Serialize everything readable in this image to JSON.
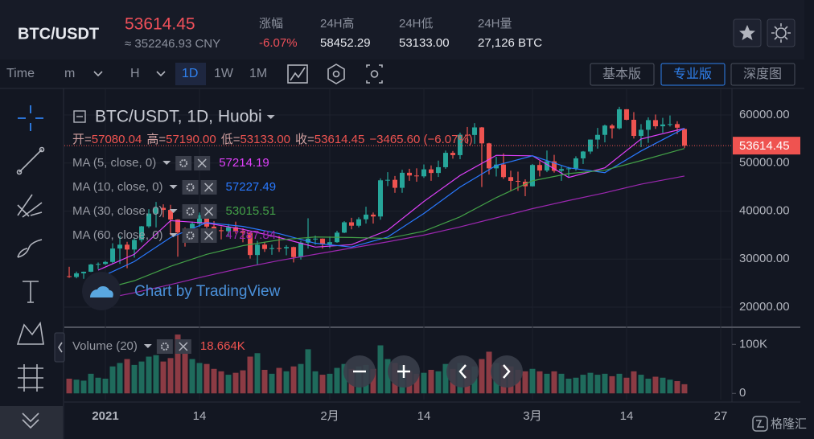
{
  "header": {
    "pair": "BTC/USDT",
    "price": "53614.45",
    "price_cny": "≈ 352246.93 CNY",
    "stats": [
      {
        "label": "涨幅",
        "value": "-6.07%"
      },
      {
        "label": "24H高",
        "value": "58452.29"
      },
      {
        "label": "24H低",
        "value": "53133.00"
      },
      {
        "label": "24H量",
        "value": "27,126 BTC"
      }
    ]
  },
  "toolbar": {
    "intervals": [
      "Time",
      "m",
      "H",
      "1D",
      "1W",
      "1M"
    ],
    "versions": [
      "基本版",
      "专业版",
      "深度图"
    ]
  },
  "chart_data": {
    "type": "candlestick",
    "title": "BTC/USDT, 1D, Huobi",
    "ohlc_legend": [
      "开=",
      "57080.04",
      "高=",
      "57190.00",
      "低=",
      "53133.00",
      "收=",
      "53614.45",
      "−3465.60 (−6.07%)"
    ],
    "watermark": "Chart by TradingView",
    "logo": "格隆汇",
    "up_color": "#26a69a",
    "down_color": "#ef5350",
    "grid": true,
    "x": [
      -5,
      -4,
      -3,
      -2,
      -1,
      0,
      1,
      2,
      3,
      4,
      5,
      6,
      7,
      8,
      9,
      10,
      11,
      12,
      13,
      14,
      15,
      16,
      17,
      18,
      19,
      20,
      21,
      22,
      23,
      24,
      25,
      26,
      27,
      28,
      29,
      30,
      31,
      32,
      33,
      34,
      35,
      36,
      37,
      38,
      39,
      40,
      41,
      42,
      43,
      44,
      45,
      46,
      47,
      48,
      49,
      50,
      51,
      52,
      53,
      54,
      55,
      56,
      57,
      58,
      59,
      60,
      61,
      62,
      63,
      64,
      65,
      66,
      67,
      68,
      69,
      70,
      71,
      72,
      73,
      74,
      75,
      76,
      77,
      78,
      79,
      80
    ],
    "xlim": [
      -5.67,
      86.56
    ],
    "xticks": [
      {
        "value": 0,
        "label": "2021"
      },
      {
        "value": 13,
        "label": "14"
      },
      {
        "value": 31,
        "label": "2月"
      },
      {
        "value": 44,
        "label": "14"
      },
      {
        "value": 59,
        "label": "3月"
      },
      {
        "value": 72,
        "label": "14"
      },
      {
        "value": 85,
        "label": "27"
      }
    ],
    "ylim": [
      16151,
      64686
    ],
    "yticks": [
      {
        "value": 20000,
        "label": "20000.00"
      },
      {
        "value": 30000,
        "label": "30000.00"
      },
      {
        "value": 40000,
        "label": "40000.00"
      },
      {
        "value": 50000,
        "label": "50000.00"
      },
      {
        "value": 60000,
        "label": "60000.00"
      }
    ],
    "open": [
      26440,
      26280,
      27040,
      27370,
      28880,
      28990,
      29410,
      32200,
      33000,
      31990,
      33990,
      36820,
      39470,
      40670,
      40240,
      38240,
      35540,
      34040,
      37370,
      39160,
      36760,
      36010,
      35820,
      36630,
      35890,
      35470,
      30850,
      33010,
      32100,
      32290,
      32250,
      32510,
      30420,
      33420,
      34260,
      34260,
      33110,
      33520,
      35510,
      37660,
      36950,
      38290,
      39260,
      38870,
      46400,
      46500,
      44840,
      47970,
      47400,
      47230,
      48680,
      47930,
      49130,
      52120,
      51640,
      55890,
      55840,
      57410,
      54090,
      48890,
      49680,
      47070,
      46280,
      46110,
      45160,
      49590,
      48440,
      50350,
      48370,
      48750,
      48880,
      50970,
      52390,
      54880,
      55860,
      57800,
      57220,
      61190,
      59000,
      55640,
      56920,
      58930,
      57650,
      58030,
      58100,
      57080.04
    ],
    "high": [
      28400,
      27400,
      27400,
      28990,
      29300,
      29600,
      33300,
      34800,
      33600,
      34500,
      36900,
      40400,
      41900,
      41400,
      41300,
      38300,
      36600,
      37800,
      39700,
      39700,
      37900,
      36800,
      37300,
      37800,
      36400,
      35600,
      33800,
      33500,
      33000,
      34800,
      32900,
      32600,
      33800,
      38500,
      34900,
      34300,
      34700,
      35900,
      37900,
      38600,
      38700,
      40900,
      39700,
      46800,
      48100,
      47300,
      48600,
      48800,
      48900,
      49700,
      49500,
      50500,
      52600,
      52500,
      56300,
      57500,
      58300,
      57500,
      54200,
      51300,
      52000,
      48400,
      48200,
      46600,
      49800,
      50400,
      52600,
      51700,
      49400,
      49200,
      51400,
      52500,
      54900,
      57300,
      58000,
      58100,
      61700,
      61200,
      60600,
      58100,
      59500,
      60100,
      59400,
      59900,
      58700,
      57190
    ],
    "low": [
      26100,
      26000,
      25900,
      27300,
      27900,
      28800,
      29100,
      29000,
      28100,
      30300,
      33500,
      36500,
      36600,
      38700,
      35000,
      30500,
      32600,
      33600,
      36700,
      34500,
      35400,
      34100,
      34800,
      35300,
      33500,
      30100,
      28900,
      31500,
      30900,
      31500,
      30800,
      29300,
      29900,
      32200,
      33000,
      32200,
      32300,
      33400,
      35400,
      36200,
      36600,
      37400,
      37400,
      38200,
      45200,
      43800,
      43800,
      46300,
      46100,
      46900,
      46300,
      47100,
      48800,
      50900,
      50800,
      54000,
      54000,
      45000,
      47600,
      47200,
      46700,
      44200,
      44200,
      43100,
      45100,
      47200,
      48100,
      48000,
      46300,
      47100,
      48400,
      49800,
      51900,
      53000,
      54300,
      55100,
      57000,
      58900,
      55100,
      53300,
      54200,
      57100,
      56300,
      57600,
      56000,
      53133
    ],
    "close": [
      26280,
      27040,
      27370,
      28880,
      28990,
      29410,
      32200,
      33000,
      31990,
      33990,
      36820,
      39470,
      40670,
      40240,
      38240,
      35540,
      34040,
      37370,
      39160,
      36760,
      36010,
      35820,
      36630,
      35890,
      35470,
      30850,
      33010,
      32100,
      32290,
      32250,
      32510,
      30420,
      33420,
      34260,
      34260,
      33110,
      33520,
      35510,
      37660,
      36950,
      38290,
      39260,
      38870,
      46400,
      46500,
      44840,
      47970,
      47400,
      47230,
      48680,
      47930,
      49130,
      52120,
      51640,
      55890,
      55840,
      57410,
      54090,
      48890,
      49680,
      47070,
      46280,
      46110,
      45160,
      49590,
      48440,
      50350,
      48370,
      48750,
      48880,
      50970,
      52390,
      54880,
      55860,
      57800,
      57220,
      61190,
      59000,
      55640,
      56920,
      58930,
      57650,
      58030,
      58100,
      57350,
      53614.45
    ],
    "indicators": [
      {
        "name": "MA (5, close, 0)",
        "color": "#e040fb",
        "value_label": "57214.19",
        "x": [
          -1,
          4,
          9,
          14,
          19,
          24,
          29,
          34,
          39,
          44,
          49,
          54,
          59,
          64,
          69,
          74,
          80
        ],
        "values": [
          27700,
          31000,
          38000,
          37500,
          36200,
          34500,
          32500,
          33000,
          36000,
          42000,
          47400,
          51600,
          51500,
          47000,
          49000,
          55000,
          57214.19
        ]
      },
      {
        "name": "MA (10, close, 0)",
        "color": "#2979ff",
        "value_label": "57227.49",
        "x": [
          -1,
          4,
          9,
          14,
          19,
          24,
          29,
          34,
          39,
          44,
          49,
          54,
          59,
          64,
          69,
          74,
          80
        ],
        "values": [
          26000,
          29500,
          34500,
          37600,
          36800,
          35300,
          33300,
          32500,
          34600,
          39500,
          45000,
          49500,
          51500,
          49000,
          48000,
          52500,
          57227.49
        ]
      },
      {
        "name": "MA (30, close, 0)",
        "color": "#43a047",
        "value_label": "53015.51",
        "x": [
          -1,
          4,
          9,
          14,
          19,
          24,
          29,
          34,
          39,
          44,
          49,
          54,
          59,
          64,
          69,
          74,
          80
        ],
        "values": [
          23500,
          25500,
          28500,
          31000,
          32800,
          34000,
          34600,
          34500,
          34300,
          35800,
          38800,
          42800,
          46300,
          47800,
          48500,
          50500,
          53015.51
        ]
      },
      {
        "name": "MA (60, close, 0)",
        "color": "#9c27b0",
        "value_label": "47287.84",
        "x": [
          -1,
          4,
          9,
          14,
          19,
          24,
          29,
          34,
          39,
          44,
          49,
          54,
          59,
          64,
          69,
          74,
          80
        ],
        "values": [
          21500,
          23000,
          24700,
          26500,
          28200,
          29700,
          31000,
          32300,
          33600,
          35000,
          36700,
          38600,
          40500,
          42200,
          43800,
          45600,
          47287.84
        ]
      }
    ],
    "volume": {
      "name": "Volume (20)",
      "value_label": "18.664K",
      "up_color": "#1f6b5c",
      "down_color": "#8c3b44",
      "ylim": [
        -12700,
        130000
      ],
      "yticks": [
        0,
        {
          "value": 100000,
          "label": "100K"
        }
      ],
      "values": [
        30000,
        28000,
        26000,
        40000,
        32000,
        30000,
        55000,
        62000,
        70000,
        58000,
        65000,
        75000,
        78000,
        65000,
        72000,
        120000,
        88000,
        70000,
        62000,
        60000,
        50000,
        45000,
        38000,
        42000,
        47000,
        75000,
        82000,
        48000,
        40000,
        52000,
        45000,
        55000,
        60000,
        90000,
        45000,
        38000,
        40000,
        52000,
        60000,
        50000,
        55000,
        58000,
        50000,
        98000,
        70000,
        62000,
        58000,
        45000,
        40000,
        42000,
        48000,
        45000,
        60000,
        50000,
        62000,
        48000,
        55000,
        70000,
        85000,
        62000,
        58000,
        55000,
        48000,
        45000,
        50000,
        45000,
        40000,
        45000,
        40000,
        30000,
        32000,
        38000,
        42000,
        38000,
        40000,
        35000,
        40000,
        32000,
        45000,
        38000,
        30000,
        34000,
        32000,
        28000,
        25000,
        18664
      ]
    }
  }
}
